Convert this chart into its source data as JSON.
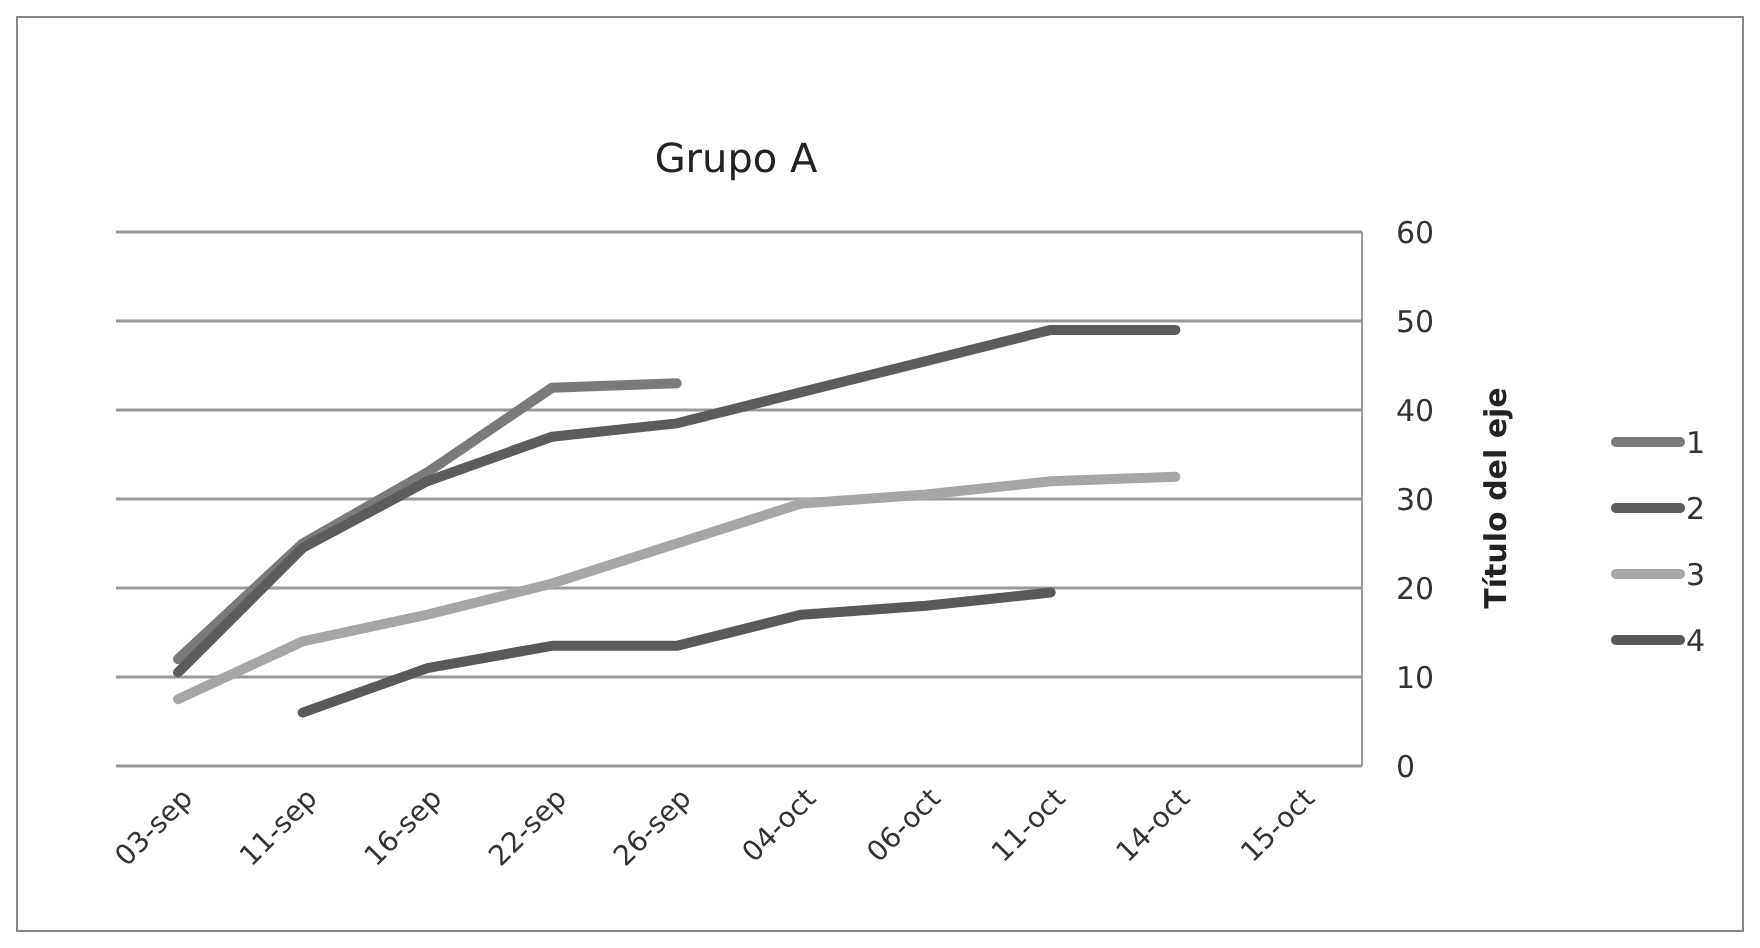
{
  "chart_data": {
    "type": "line",
    "title": "Grupo A",
    "ylabel": "Título del eje",
    "categories": [
      "03-sep",
      "11-sep",
      "16-sep",
      "22-sep",
      "26-sep",
      "04-oct",
      "06-oct",
      "11-oct",
      "14-oct",
      "15-oct"
    ],
    "series": [
      {
        "name": "1",
        "color": "#7a7a7a",
        "values": [
          12,
          25,
          33,
          42.5,
          43,
          null,
          null,
          null,
          null,
          null
        ]
      },
      {
        "name": "2",
        "color": "#5c5c5c",
        "values": [
          10.5,
          24.5,
          32,
          37,
          38.5,
          42,
          45.5,
          49,
          49,
          null
        ]
      },
      {
        "name": "3",
        "color": "#a6a6a6",
        "values": [
          7.5,
          14,
          17,
          20.5,
          25,
          29.5,
          30.5,
          32,
          32.5,
          null
        ]
      },
      {
        "name": "4",
        "color": "#595959",
        "values": [
          null,
          6,
          11,
          13.5,
          13.5,
          17,
          18,
          19.5,
          null,
          null
        ]
      }
    ],
    "ylim": [
      0,
      60
    ],
    "yticks": [
      0,
      10,
      20,
      30,
      40,
      50,
      60
    ],
    "grid": "y",
    "legend": "right",
    "marker": "none",
    "line_style": "solid"
  }
}
